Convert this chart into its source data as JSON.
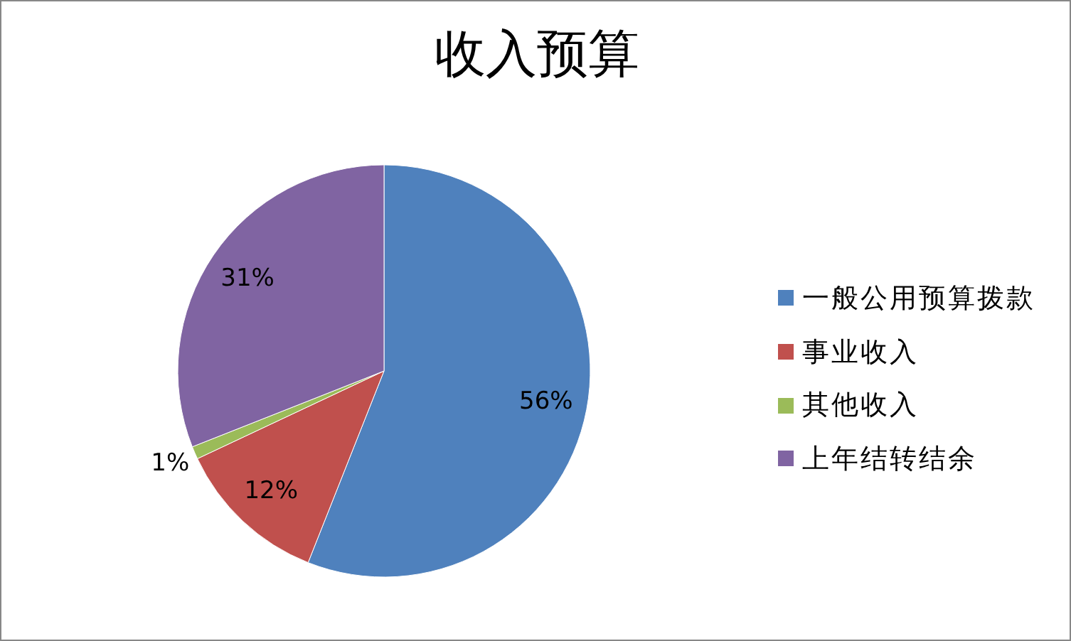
{
  "chart_data": {
    "type": "pie",
    "title": "收入预算",
    "categories": [
      "一般公用预算拨款",
      "事业收入",
      "其他收入",
      "上年结转结余"
    ],
    "values": [
      56,
      12,
      1,
      31
    ],
    "colors": [
      "#4f81bd",
      "#c0504d",
      "#9bbb59",
      "#8064a2"
    ],
    "value_labels": [
      "56%",
      "12%",
      "1%",
      "31%"
    ],
    "legend": "right"
  }
}
